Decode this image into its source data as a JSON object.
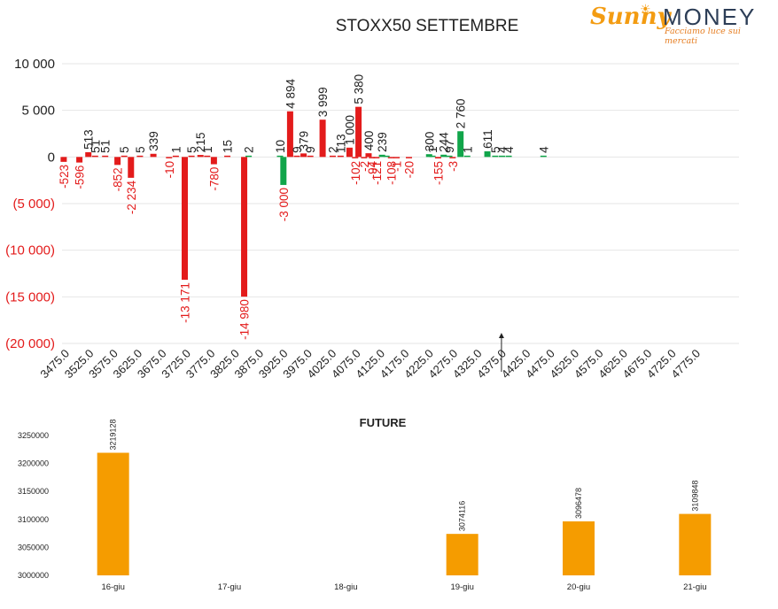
{
  "logo": {
    "sunny": "Sunny",
    "money": "MONEY",
    "tagline": "Facciamo luce sui mercati",
    "icon": "sun-icon"
  },
  "colors": {
    "negative": "#e31b1b",
    "positive": "#11a54a",
    "future": "#f59c00",
    "text": "#222222",
    "negText": "#e31b1b"
  },
  "chart_data": [
    {
      "type": "bar",
      "title": "STOXX50 SETTEMBRE",
      "ylim": [
        -20000,
        10000
      ],
      "yticks": [
        {
          "v": 10000,
          "label": "10 000"
        },
        {
          "v": 5000,
          "label": "5 000"
        },
        {
          "v": 0,
          "label": "0"
        },
        {
          "v": -5000,
          "label": "(5 000)"
        },
        {
          "v": -10000,
          "label": "(10 000)"
        },
        {
          "v": -15000,
          "label": "(15 000)"
        },
        {
          "v": -20000,
          "label": "(20 000)"
        }
      ],
      "grid": true,
      "categories": [
        "3475.0",
        "3525.0",
        "3575.0",
        "3625.0",
        "3675.0",
        "3725.0",
        "3775.0",
        "3825.0",
        "3875.0",
        "3925.0",
        "3975.0",
        "4025.0",
        "4075.0",
        "4125.0",
        "4175.0",
        "4225.0",
        "4275.0",
        "4325.0",
        "4375.0",
        "4425.0",
        "4475.0",
        "4525.0",
        "4575.0",
        "4625.0",
        "4675.0",
        "4725.0",
        "4775.0"
      ],
      "marker_strike": "4375.0",
      "series": [
        {
          "color": "#e31b1b",
          "points": [
            {
              "i": -0.4,
              "v": -523,
              "label": "-523"
            },
            {
              "i": 0.3,
              "v": -596,
              "label": "-596"
            },
            {
              "i": 0.7,
              "v": 513,
              "label": "513"
            },
            {
              "i": 1.0,
              "v": 51,
              "label": "51"
            },
            {
              "i": 1.45,
              "v": 51,
              "label": "51"
            },
            {
              "i": 2.0,
              "v": -852,
              "label": "-852"
            },
            {
              "i": 2.3,
              "v": 5,
              "label": "5"
            },
            {
              "i": 2.6,
              "v": -2234,
              "label": "-2 234"
            },
            {
              "i": 3.0,
              "v": 5,
              "label": "5"
            },
            {
              "i": 3.6,
              "v": 339,
              "label": "339"
            },
            {
              "i": 4.3,
              "v": -10,
              "label": "-10"
            },
            {
              "i": 4.6,
              "v": 1,
              "label": "1"
            },
            {
              "i": 5.0,
              "v": -13171,
              "label": "-13 171"
            },
            {
              "i": 5.3,
              "v": 5,
              "label": "5"
            },
            {
              "i": 5.7,
              "v": 215,
              "label": "215"
            },
            {
              "i": 6.0,
              "v": 1,
              "label": "1"
            },
            {
              "i": 6.3,
              "v": -780,
              "label": "-780"
            },
            {
              "i": 6.9,
              "v": 15,
              "label": "15"
            },
            {
              "i": 7.65,
              "v": -14980,
              "label": "-14 980"
            },
            {
              "i": 9.7,
              "v": 4894,
              "label": "4 894"
            },
            {
              "i": 10.0,
              "v": 9,
              "label": "9"
            },
            {
              "i": 10.3,
              "v": 379,
              "label": "379"
            },
            {
              "i": 10.6,
              "v": 9,
              "label": "9"
            },
            {
              "i": 11.15,
              "v": 3999,
              "label": "3 999"
            },
            {
              "i": 11.6,
              "v": 2,
              "label": "2"
            },
            {
              "i": 11.95,
              "v": 113,
              "label": "113"
            },
            {
              "i": 12.35,
              "v": 1000,
              "label": "1 000"
            },
            {
              "i": 12.6,
              "v": -102,
              "label": "-102"
            },
            {
              "i": 12.75,
              "v": 5380,
              "label": "5 380"
            },
            {
              "i": 13.0,
              "v": -2,
              "label": "-2"
            },
            {
              "i": 13.2,
              "v": 400,
              "label": "400"
            },
            {
              "i": 13.35,
              "v": -94,
              "label": "-94"
            },
            {
              "i": 13.55,
              "v": -121,
              "label": "-121"
            },
            {
              "i": 14.2,
              "v": -108,
              "label": "-108"
            },
            {
              "i": 14.45,
              "v": -1,
              "label": "-1"
            },
            {
              "i": 15.0,
              "v": -20,
              "label": "-20"
            },
            {
              "i": 16.3,
              "v": -155,
              "label": "-155"
            },
            {
              "i": 16.95,
              "v": -3,
              "label": "-3"
            }
          ]
        },
        {
          "color": "#11a54a",
          "points": [
            {
              "i": 7.85,
              "v": 2,
              "label": "2"
            },
            {
              "i": 9.4,
              "v": -3000,
              "label": "-3 000"
            },
            {
              "i": 9.25,
              "v": 10,
              "label": "10"
            },
            {
              "i": 13.8,
              "v": 239,
              "label": "239"
            },
            {
              "i": 14.0,
              "v": 1,
              "label": ""
            },
            {
              "i": 15.9,
              "v": 300,
              "label": "300"
            },
            {
              "i": 16.05,
              "v": 1,
              "label": "1"
            },
            {
              "i": 16.55,
              "v": 244,
              "label": "244"
            },
            {
              "i": 16.8,
              "v": 97,
              "label": "97"
            },
            {
              "i": 17.3,
              "v": 2760,
              "label": "2 760"
            },
            {
              "i": 17.6,
              "v": 1,
              "label": "1"
            },
            {
              "i": 18.5,
              "v": 611,
              "label": "611"
            },
            {
              "i": 18.85,
              "v": 5,
              "label": "5"
            },
            {
              "i": 19.15,
              "v": 4,
              "label": "4"
            },
            {
              "i": 19.45,
              "v": 4,
              "label": "4"
            },
            {
              "i": 21.0,
              "v": 4,
              "label": "4"
            }
          ]
        }
      ]
    },
    {
      "type": "bar",
      "title": "FUTURE",
      "categories": [
        "16-giu",
        "17-giu",
        "18-giu",
        "19-giu",
        "20-giu",
        "21-giu"
      ],
      "values": [
        3219128,
        null,
        null,
        3074116,
        3096478,
        3109848
      ],
      "labels": [
        "3219128",
        "",
        "",
        "3074116",
        "3096478",
        "3109848"
      ],
      "ylim": [
        3000000,
        3250000
      ],
      "yticks": [
        "3000000",
        "3050000",
        "3100000",
        "3150000",
        "3200000",
        "3250000"
      ],
      "grid": false
    }
  ]
}
